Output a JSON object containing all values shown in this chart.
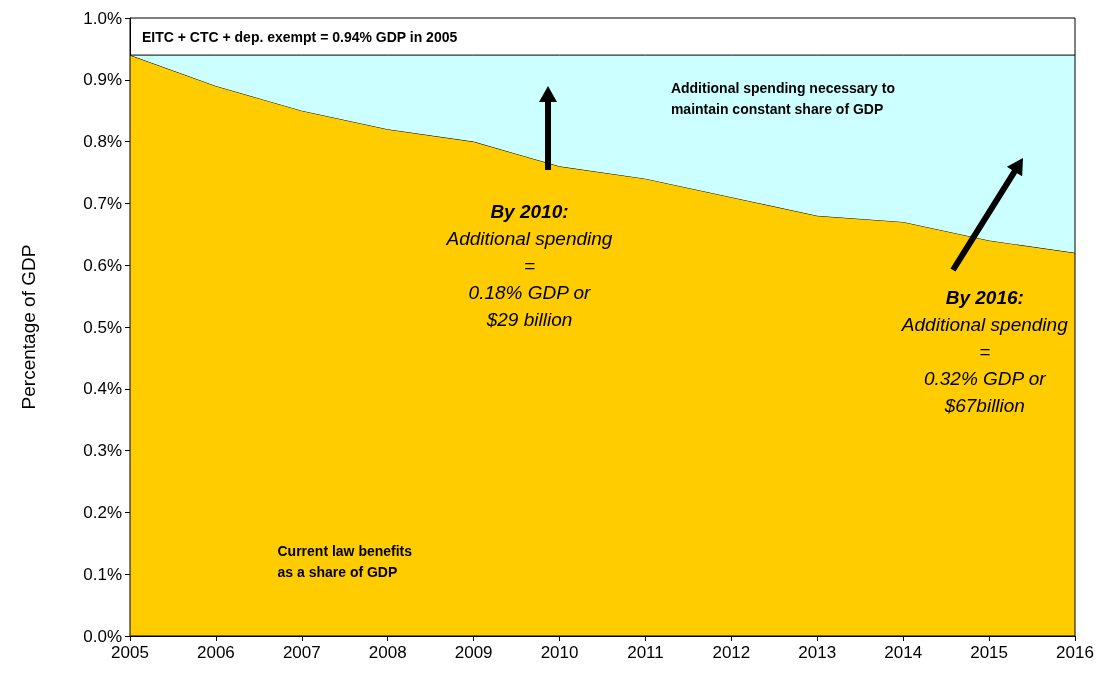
{
  "chart_data": {
    "type": "area",
    "stacked": true,
    "marker": "none",
    "ylabel": "Percentage of GDP",
    "categories": [
      "2005",
      "2006",
      "2007",
      "2008",
      "2009",
      "2010",
      "2011",
      "2012",
      "2013",
      "2014",
      "2015",
      "2016"
    ],
    "series": [
      {
        "color": "#ffcc00",
        "values": [
          0.94,
          0.89,
          0.85,
          0.82,
          0.8,
          0.76,
          0.74,
          0.71,
          0.68,
          0.67,
          0.64,
          0.62
        ]
      },
      {
        "color": "#ccffff",
        "values": [
          0,
          0.05,
          0.09,
          0.12,
          0.14,
          0.18,
          0.2,
          0.23,
          0.26,
          0.27,
          0.3,
          0.32
        ]
      }
    ],
    "ylim": [
      0,
      1.0
    ],
    "yticks": [
      {
        "value": 0,
        "label": "0.0%"
      },
      {
        "value": 0.1,
        "label": "0.1%"
      },
      {
        "value": 0.2,
        "label": "0.2%"
      },
      {
        "value": 0.3,
        "label": "0.3%"
      },
      {
        "value": 0.4,
        "label": "0.4%"
      },
      {
        "value": 0.5,
        "label": "0.5%"
      },
      {
        "value": 0.6,
        "label": "0.6%"
      },
      {
        "value": 0.7,
        "label": "0.7%"
      },
      {
        "value": 0.8,
        "label": "0.8%"
      },
      {
        "value": 0.9,
        "label": "0.9%"
      },
      {
        "value": 1.0,
        "label": "1.0%"
      }
    ],
    "annotations": [
      "EITC + CTC + dep. exempt = 0.94% GDP in 2005",
      "Additional spending necessary to\nmaintain constant share of GDP",
      "By 2010:\nAdditional spending\n=\n0.18% GDP or\n$29 billion",
      "By 2016:\nAdditional spending\n=\n0.32% GDP or\n$67billion",
      "Current law benefits\nas a share of GDP"
    ]
  }
}
